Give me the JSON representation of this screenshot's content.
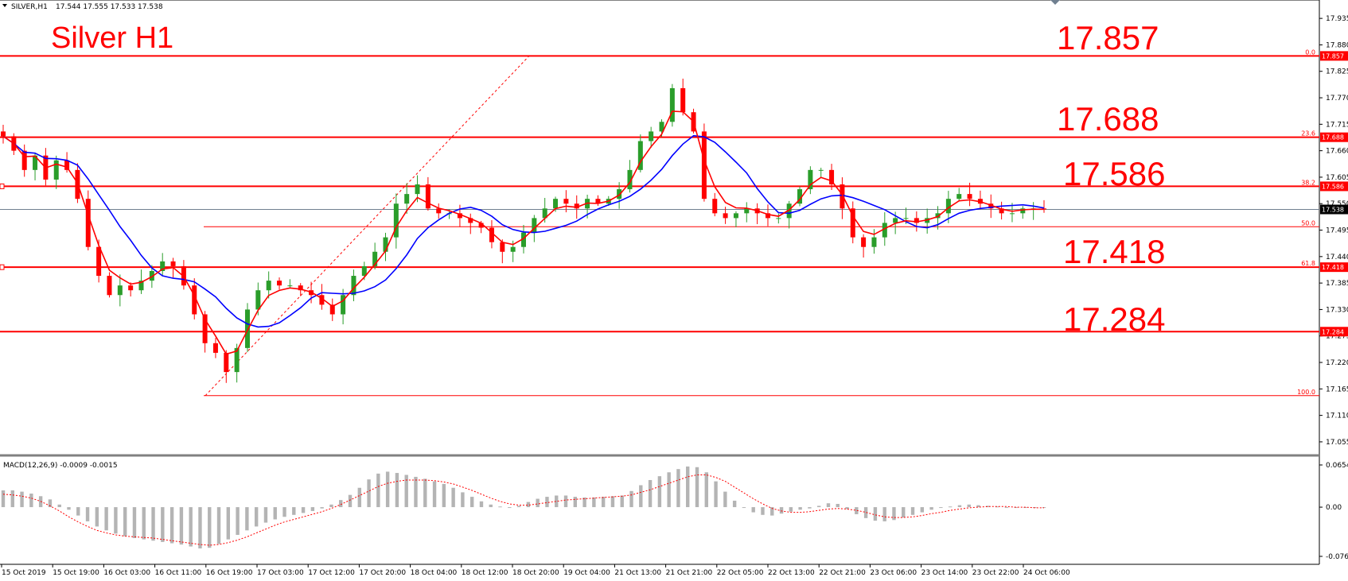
{
  "header": {
    "symbol": "SILVER,H1",
    "ohlc": "17.544 17.555 17.533 17.538",
    "chart_label": "Silver H1",
    "macd_label": "MACD(12,26,9) -0.0009 -0.0015"
  },
  "colors": {
    "level_line": "#ff0000",
    "ma_fast": "#ff0000",
    "ma_slow": "#0000ff",
    "candle_up": "#2a9d2a",
    "candle_down": "#ff0000",
    "macd_hist": "#b4b4b4",
    "macd_signal": "#ff0000",
    "current_price_line": "#708090"
  },
  "levels": [
    {
      "label": "17.857",
      "price": 17.857,
      "fib": "0.0",
      "tag": "17.857"
    },
    {
      "label": "17.688",
      "price": 17.688,
      "fib": "23.6",
      "tag": "17.688"
    },
    {
      "label": "17.586",
      "price": 17.586,
      "fib": "38.2",
      "tag": "17.586"
    },
    {
      "label": "17.418",
      "price": 17.418,
      "fib": "61.8",
      "tag": "17.418"
    },
    {
      "label": "17.284",
      "price": 17.284,
      "fib": "",
      "tag": "17.284"
    }
  ],
  "fib_extra": [
    {
      "fib": "50.0",
      "price": 17.502
    },
    {
      "fib": "100.0",
      "price": 17.151
    }
  ],
  "current_price": {
    "price": 17.538,
    "tag": "17.538"
  },
  "chart_data": {
    "type": "candlestick",
    "title": "Silver H1",
    "y_ticks": [
      "17.935",
      "17.880",
      "17.825",
      "17.770",
      "17.715",
      "17.660",
      "17.605",
      "17.550",
      "17.495",
      "17.440",
      "17.385",
      "17.330",
      "17.275",
      "17.220",
      "17.165",
      "17.110",
      "17.055"
    ],
    "ylim": [
      17.04,
      17.96
    ],
    "x_ticks": [
      "15 Oct 2019",
      "15 Oct 19:00",
      "16 Oct 03:00",
      "16 Oct 11:00",
      "16 Oct 19:00",
      "17 Oct 03:00",
      "17 Oct 12:00",
      "17 Oct 20:00",
      "18 Oct 04:00",
      "18 Oct 12:00",
      "18 Oct 20:00",
      "19 Oct 04:00",
      "21 Oct 13:00",
      "21 Oct 21:00",
      "22 Oct 05:00",
      "22 Oct 13:00",
      "22 Oct 21:00",
      "23 Oct 06:00",
      "23 Oct 14:00",
      "23 Oct 22:00",
      "24 Oct 06:00"
    ],
    "close_path": [
      17.69,
      17.66,
      17.62,
      17.65,
      17.6,
      17.64,
      17.62,
      17.56,
      17.46,
      17.4,
      17.36,
      17.38,
      17.37,
      17.39,
      17.41,
      17.43,
      17.42,
      17.38,
      17.32,
      17.26,
      17.24,
      17.2,
      17.25,
      17.33,
      17.37,
      17.39,
      17.38,
      17.38,
      17.37,
      17.36,
      17.34,
      17.32,
      17.36,
      17.4,
      17.42,
      17.45,
      17.48,
      17.55,
      17.57,
      17.59,
      17.54,
      17.53,
      17.53,
      17.52,
      17.51,
      17.5,
      17.47,
      17.45,
      17.46,
      17.49,
      17.52,
      17.54,
      17.56,
      17.55,
      17.54,
      17.56,
      17.55,
      17.56,
      17.58,
      17.62,
      17.68,
      17.7,
      17.72,
      17.79,
      17.74,
      17.7,
      17.56,
      17.53,
      17.52,
      17.53,
      17.54,
      17.53,
      17.52,
      17.52,
      17.55,
      17.58,
      17.62,
      17.62,
      17.59,
      17.54,
      17.48,
      17.46,
      17.48,
      17.51,
      17.52,
      17.52,
      17.51,
      17.52,
      17.53,
      17.56,
      17.57,
      17.56,
      17.55,
      17.54,
      17.53,
      17.53,
      17.54,
      17.54,
      17.538
    ],
    "macd_ylim": [
      -0.0763,
      0.0654
    ],
    "macd_ticks": [
      "0.0654",
      "0.00",
      "-0.0763"
    ],
    "macd_hist": [
      0.026,
      0.026,
      0.024,
      0.021,
      0.017,
      0.012,
      0.004,
      -0.004,
      -0.013,
      -0.022,
      -0.03,
      -0.036,
      -0.041,
      -0.045,
      -0.048,
      -0.05,
      -0.052,
      -0.054,
      -0.056,
      -0.058,
      -0.061,
      -0.064,
      -0.063,
      -0.057,
      -0.05,
      -0.043,
      -0.036,
      -0.03,
      -0.024,
      -0.019,
      -0.015,
      -0.012,
      -0.009,
      -0.006,
      -0.002,
      0.004,
      0.011,
      0.019,
      0.03,
      0.043,
      0.052,
      0.055,
      0.053,
      0.05,
      0.047,
      0.044,
      0.04,
      0.036,
      0.03,
      0.023,
      0.016,
      0.009,
      0.004,
      0.001,
      -0.001,
      0.002,
      0.008,
      0.013,
      0.016,
      0.018,
      0.018,
      0.016,
      0.015,
      0.015,
      0.016,
      0.017,
      0.018,
      0.025,
      0.034,
      0.042,
      0.048,
      0.054,
      0.059,
      0.063,
      0.062,
      0.054,
      0.04,
      0.024,
      0.01,
      -0.001,
      -0.008,
      -0.012,
      -0.013,
      -0.01,
      -0.007,
      -0.004,
      -0.002,
      0.002,
      0.006,
      0.005,
      -0.003,
      -0.011,
      -0.017,
      -0.021,
      -0.022,
      -0.02,
      -0.016,
      -0.012,
      -0.008,
      -0.004,
      -0.001,
      0.001,
      0.003,
      0.004,
      0.003,
      0.002,
      0.001,
      0.0,
      -0.001,
      -0.001,
      -0.001,
      -0.001
    ],
    "macd_signal": [
      0.02,
      0.019,
      0.017,
      0.014,
      0.009,
      0.002,
      -0.006,
      -0.015,
      -0.023,
      -0.03,
      -0.036,
      -0.04,
      -0.043,
      -0.045,
      -0.046,
      -0.047,
      -0.048,
      -0.05,
      -0.052,
      -0.054,
      -0.056,
      -0.058,
      -0.059,
      -0.058,
      -0.055,
      -0.051,
      -0.046,
      -0.04,
      -0.034,
      -0.028,
      -0.023,
      -0.019,
      -0.015,
      -0.011,
      -0.007,
      -0.002,
      0.004,
      0.011,
      0.018,
      0.025,
      0.032,
      0.037,
      0.04,
      0.042,
      0.042,
      0.042,
      0.041,
      0.039,
      0.036,
      0.031,
      0.026,
      0.02,
      0.014,
      0.009,
      0.005,
      0.003,
      0.003,
      0.005,
      0.007,
      0.009,
      0.011,
      0.012,
      0.013,
      0.014,
      0.015,
      0.016,
      0.017,
      0.019,
      0.023,
      0.027,
      0.032,
      0.037,
      0.042,
      0.047,
      0.05,
      0.05,
      0.046,
      0.04,
      0.031,
      0.022,
      0.013,
      0.005,
      -0.002,
      -0.006,
      -0.008,
      -0.008,
      -0.007,
      -0.005,
      -0.003,
      -0.002,
      -0.003,
      -0.005,
      -0.008,
      -0.012,
      -0.015,
      -0.016,
      -0.016,
      -0.015,
      -0.013,
      -0.01,
      -0.008,
      -0.005,
      -0.003,
      -0.001,
      0.0,
      0.001,
      0.001,
      0.001,
      0.0,
      0.0,
      -0.001,
      -0.001
    ]
  }
}
